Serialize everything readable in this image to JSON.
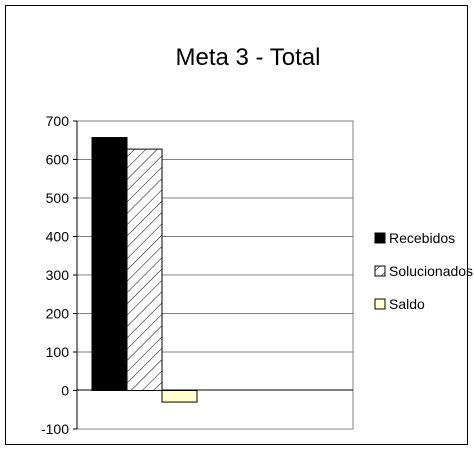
{
  "chart_data": {
    "type": "bar",
    "title": "Meta 3 - Total",
    "xlabel": "",
    "ylabel": "",
    "categories": [
      ""
    ],
    "series": [
      {
        "name": "Recebidos",
        "values": [
          657
        ],
        "fill": "#000000",
        "pattern": "solid"
      },
      {
        "name": "Solucionados",
        "values": [
          627
        ],
        "fill": "#ffffff",
        "pattern": "diagonal-hatch"
      },
      {
        "name": "Saldo",
        "values": [
          -30
        ],
        "fill": "#ffffcc",
        "pattern": "solid"
      }
    ],
    "ylim": [
      -100,
      700
    ],
    "yticks": [
      "700",
      "600",
      "500",
      "400",
      "300",
      "200",
      "100",
      "0",
      "-100"
    ],
    "grid": true,
    "legend": "right"
  }
}
